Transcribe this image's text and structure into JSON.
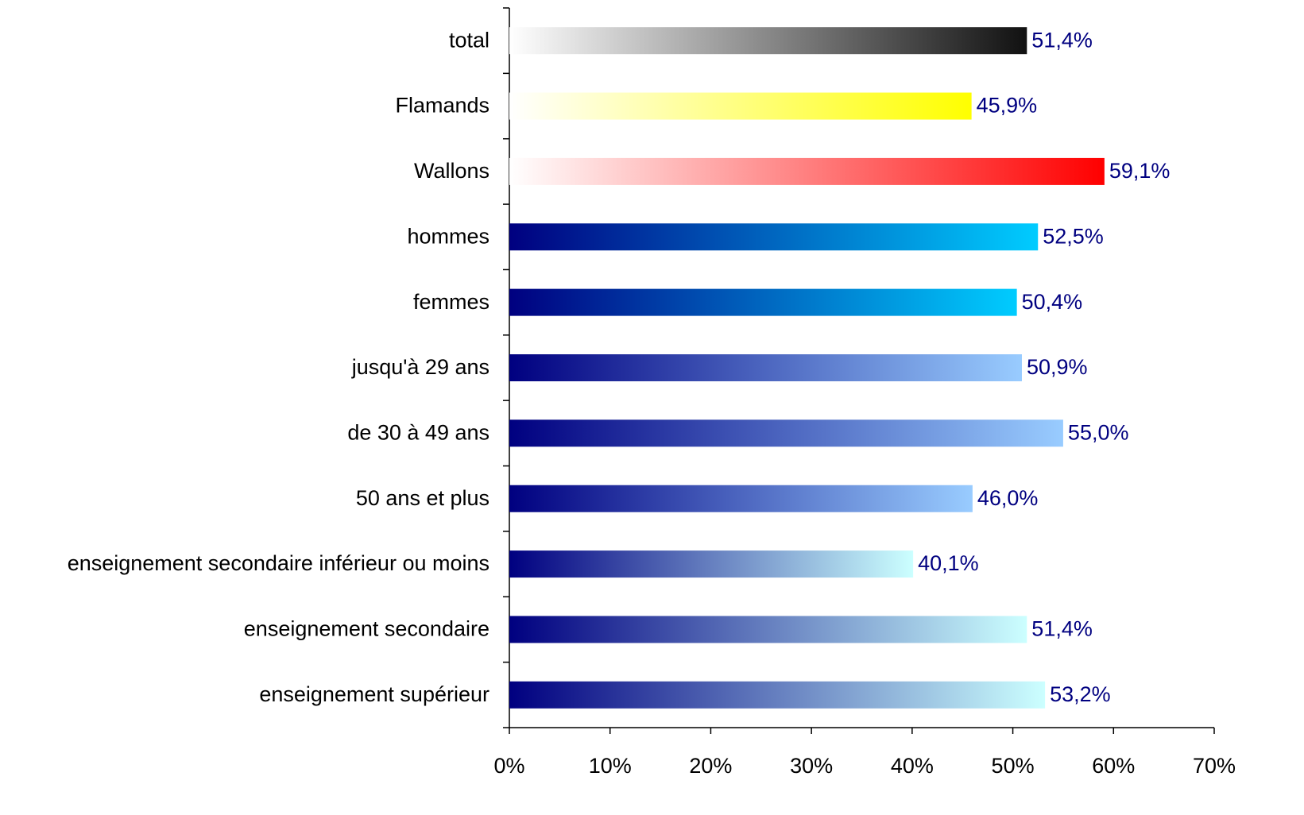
{
  "chart_data": {
    "type": "barh",
    "categories": [
      "total",
      "Flamands",
      "Wallons",
      "hommes",
      "femmes",
      "jusqu'à 29 ans",
      "de 30 à 49 ans",
      "50 ans et plus",
      "enseignement secondaire inférieur ou moins",
      "enseignement secondaire",
      "enseignement supérieur"
    ],
    "values": [
      51.4,
      45.9,
      59.1,
      52.5,
      50.4,
      50.9,
      55.0,
      46.0,
      40.1,
      51.4,
      53.2
    ],
    "value_labels": [
      "51,4%",
      "45,9%",
      "59,1%",
      "52,5%",
      "50,4%",
      "50,9%",
      "55,0%",
      "46,0%",
      "40,1%",
      "51,4%",
      "53,2%"
    ],
    "colors": [
      [
        "#ffffff",
        "#111111"
      ],
      [
        "#ffffff",
        "#ffff00"
      ],
      [
        "#ffffff",
        "#ff0000"
      ],
      [
        "#000080",
        "#00ccff"
      ],
      [
        "#000080",
        "#00ccff"
      ],
      [
        "#000080",
        "#99ccff"
      ],
      [
        "#000080",
        "#99ccff"
      ],
      [
        "#000080",
        "#99ccff"
      ],
      [
        "#000080",
        "#ccffff"
      ],
      [
        "#000080",
        "#ccffff"
      ],
      [
        "#000080",
        "#ccffff"
      ]
    ],
    "value_label_color": "#000080",
    "xlim": [
      0,
      70
    ],
    "xticks": [
      {
        "value": 0,
        "label": "0%"
      },
      {
        "value": 10,
        "label": "10%"
      },
      {
        "value": 20,
        "label": "20%"
      },
      {
        "value": 30,
        "label": "30%"
      },
      {
        "value": 40,
        "label": "40%"
      },
      {
        "value": 50,
        "label": "50%"
      },
      {
        "value": 60,
        "label": "60%"
      },
      {
        "value": 70,
        "label": "70%"
      }
    ]
  }
}
